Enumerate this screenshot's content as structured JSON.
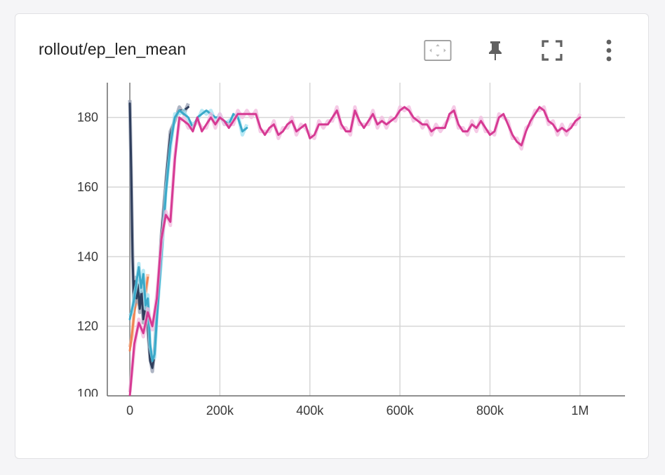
{
  "card": {
    "title": "rollout/ep_len_mean"
  },
  "toolbar": [
    {
      "name": "fit-domain-button",
      "icon": "fit-domain-icon"
    },
    {
      "name": "pin-button",
      "icon": "pin-icon"
    },
    {
      "name": "fullscreen-button",
      "icon": "fullscreen-icon"
    },
    {
      "name": "more-options-button",
      "icon": "more-vert-icon"
    }
  ],
  "colors": {
    "gridline": "#d6d6d6",
    "axis": "#6b6b6b",
    "icon": "#616161",
    "fit_border": "#9e9e9e"
  },
  "chart_data": {
    "type": "line",
    "title": "rollout/ep_len_mean",
    "xlabel": "",
    "ylabel": "",
    "xlim": [
      -50000,
      1100000
    ],
    "ylim": [
      100,
      190
    ],
    "x_ticks": [
      0,
      200000,
      400000,
      600000,
      800000,
      1000000
    ],
    "x_tick_labels": [
      "0",
      "200k",
      "400k",
      "600k",
      "800k",
      "1M"
    ],
    "y_ticks": [
      100,
      120,
      140,
      160,
      180
    ],
    "y_tick_labels": [
      "100",
      "120",
      "140",
      "160",
      "180"
    ],
    "grid": true,
    "series": [
      {
        "color": "#ef8354",
        "raw_color": "#f7c3a8",
        "x": [
          0,
          5000,
          10000,
          15000,
          20000,
          25000,
          30000,
          35000,
          40000
        ],
        "y": [
          113,
          118,
          124,
          128,
          126,
          129,
          131,
          130,
          134
        ]
      },
      {
        "color": "#2f3e5c",
        "raw_color": "#9aa3b5",
        "x": [
          0,
          3000,
          6000,
          9000,
          12000,
          15000,
          18000,
          22000,
          26000,
          30000,
          35000,
          40000,
          45000,
          50000,
          55000,
          60000,
          70000,
          80000,
          90000,
          100000,
          110000,
          120000,
          130000
        ],
        "y": [
          184,
          165,
          140,
          127,
          133,
          128,
          132,
          125,
          130,
          122,
          126,
          120,
          110,
          108,
          112,
          125,
          145,
          162,
          175,
          180,
          182,
          182,
          183
        ]
      },
      {
        "color": "#3aa9c9",
        "raw_color": "#a8e4f2",
        "x": [
          0,
          5000,
          10000,
          15000,
          20000,
          25000,
          30000,
          35000,
          40000,
          45000,
          50000,
          55000,
          60000,
          70000,
          80000,
          90000,
          100000,
          110000,
          120000,
          130000,
          140000,
          150000,
          160000,
          170000,
          180000,
          190000,
          200000,
          210000,
          220000,
          230000,
          240000,
          250000,
          260000
        ],
        "y": [
          122,
          125,
          128,
          133,
          137,
          131,
          135,
          126,
          128,
          115,
          110,
          112,
          122,
          140,
          158,
          172,
          180,
          182,
          181,
          180,
          177,
          180,
          181,
          182,
          181,
          180,
          180,
          179,
          178,
          181,
          180,
          176,
          177
        ]
      },
      {
        "color": "#d63a93",
        "raw_color": "#f3bde0",
        "x": [
          0,
          10000,
          20000,
          30000,
          40000,
          50000,
          60000,
          70000,
          80000,
          90000,
          100000,
          110000,
          120000,
          130000,
          140000,
          150000,
          160000,
          170000,
          180000,
          190000,
          200000,
          210000,
          220000,
          230000,
          240000,
          250000,
          260000,
          270000,
          280000,
          290000,
          300000,
          310000,
          320000,
          330000,
          340000,
          350000,
          360000,
          370000,
          380000,
          390000,
          400000,
          410000,
          420000,
          430000,
          440000,
          450000,
          460000,
          470000,
          480000,
          490000,
          500000,
          510000,
          520000,
          530000,
          540000,
          550000,
          560000,
          570000,
          580000,
          590000,
          600000,
          610000,
          620000,
          630000,
          640000,
          650000,
          660000,
          670000,
          680000,
          690000,
          700000,
          710000,
          720000,
          730000,
          740000,
          750000,
          760000,
          770000,
          780000,
          790000,
          800000,
          810000,
          820000,
          830000,
          840000,
          850000,
          860000,
          870000,
          880000,
          890000,
          900000,
          910000,
          920000,
          930000,
          940000,
          950000,
          960000,
          970000,
          980000,
          990000,
          1000000
        ],
        "y": [
          100,
          115,
          121,
          118,
          124,
          120,
          128,
          145,
          152,
          150,
          168,
          180,
          179,
          178,
          176,
          180,
          176,
          178,
          180,
          178,
          180,
          179,
          177,
          179,
          181,
          181,
          181,
          181,
          181,
          177,
          175,
          177,
          178,
          175,
          176,
          178,
          179,
          176,
          177,
          178,
          174,
          175,
          178,
          178,
          178,
          180,
          182,
          178,
          176,
          176,
          182,
          179,
          177,
          179,
          181,
          178,
          179,
          178,
          179,
          180,
          182,
          183,
          182,
          180,
          179,
          178,
          178,
          176,
          177,
          177,
          177,
          181,
          182,
          178,
          176,
          176,
          178,
          177,
          179,
          177,
          175,
          176,
          180,
          181,
          178,
          175,
          173,
          172,
          176,
          179,
          181,
          183,
          182,
          179,
          178,
          176,
          177,
          176,
          177,
          179,
          180
        ]
      }
    ]
  }
}
